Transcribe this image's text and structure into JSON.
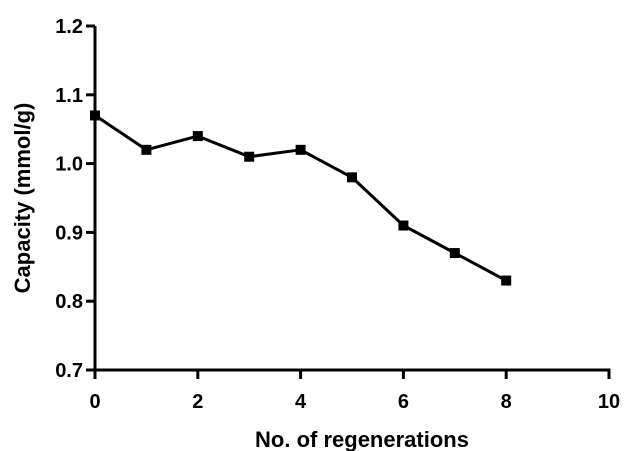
{
  "chart_data": {
    "type": "line",
    "title": "",
    "xlabel": "No. of regenerations",
    "ylabel": "Capacity (mmol/g)",
    "xlim": [
      0,
      10
    ],
    "ylim": [
      0.7,
      1.2
    ],
    "x_ticks": [
      0,
      2,
      4,
      6,
      8,
      10
    ],
    "x_tick_labels": [
      "0",
      "2",
      "4",
      "6",
      "8",
      "10"
    ],
    "y_ticks": [
      0.7,
      0.8,
      0.9,
      1.0,
      1.1,
      1.2
    ],
    "y_tick_labels": [
      "0.7",
      "0.8",
      "0.9",
      "1.0",
      "1.1",
      "1.2"
    ],
    "grid": false,
    "legend": "none",
    "series": [
      {
        "marker": "square",
        "color": "#000000",
        "x": [
          0,
          1,
          2,
          3,
          4,
          5,
          6,
          7,
          8
        ],
        "y": [
          1.07,
          1.02,
          1.04,
          1.01,
          1.02,
          0.98,
          0.91,
          0.87,
          0.83
        ]
      }
    ]
  }
}
